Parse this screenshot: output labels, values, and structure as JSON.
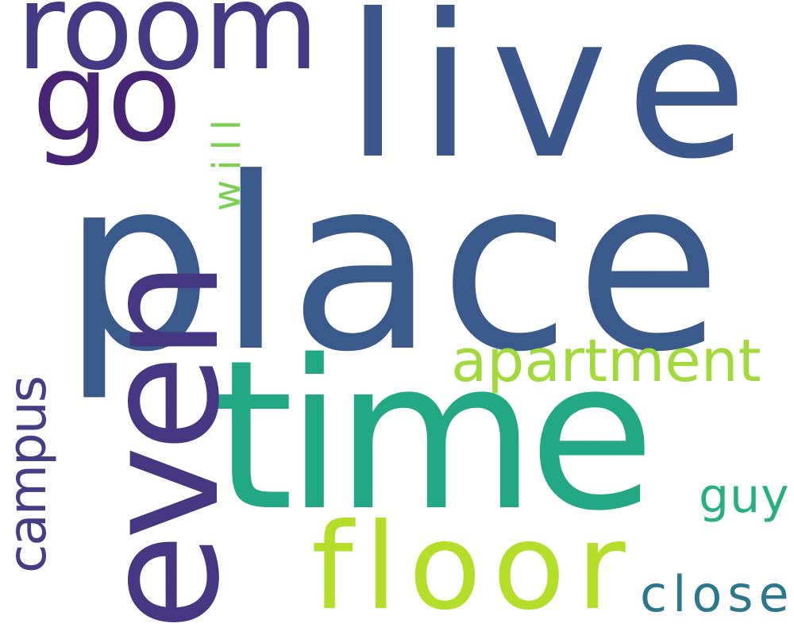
{
  "cloud": {
    "background": "#ffffff",
    "words": [
      {
        "key": "place",
        "text": "place",
        "color": "#3a5a8c",
        "orientation": "horizontal"
      },
      {
        "key": "live",
        "text": "live",
        "color": "#3b578b",
        "orientation": "horizontal"
      },
      {
        "key": "room",
        "text": "room",
        "color": "#443983",
        "orientation": "horizontal"
      },
      {
        "key": "go",
        "text": "go",
        "color": "#482475",
        "orientation": "horizontal"
      },
      {
        "key": "time",
        "text": "time",
        "color": "#22a884",
        "orientation": "horizontal"
      },
      {
        "key": "apartment",
        "text": "apartment",
        "color": "#a2d93b",
        "orientation": "horizontal"
      },
      {
        "key": "floor",
        "text": "floor",
        "color": "#b5de2b",
        "orientation": "horizontal"
      },
      {
        "key": "guy",
        "text": "guy",
        "color": "#29af7f",
        "orientation": "horizontal"
      },
      {
        "key": "close",
        "text": "close",
        "color": "#2a788e",
        "orientation": "horizontal"
      },
      {
        "key": "will",
        "text": "will",
        "color": "#7ad151",
        "orientation": "vertical"
      },
      {
        "key": "even",
        "text": "even",
        "color": "#453781",
        "orientation": "vertical"
      },
      {
        "key": "campus",
        "text": "campus",
        "color": "#433e85",
        "orientation": "vertical"
      }
    ]
  }
}
